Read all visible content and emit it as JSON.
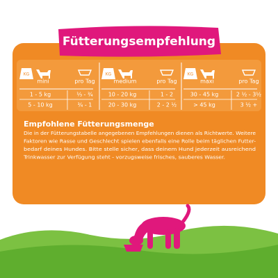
{
  "header": {
    "title": "Fütterungsempfehlung"
  },
  "table": {
    "groups": [
      {
        "kg_icon": "KG",
        "size": "mini",
        "per_day": "pro Tag",
        "rows": [
          [
            "1 - 5 kg",
            "⅓ - ¾"
          ],
          [
            "5 - 10 kg",
            "¾ - 1"
          ]
        ]
      },
      {
        "kg_icon": "KG",
        "size": "medium",
        "per_day": "pro Tag",
        "rows": [
          [
            "10 - 20 kg",
            "1 - 2"
          ],
          [
            "20 - 30 kg",
            "2 - 2 ½"
          ]
        ]
      },
      {
        "kg_icon": "KG",
        "size": "maxi",
        "per_day": "pro Tag",
        "rows": [
          [
            "30 - 45 kg",
            "2 ½ - 3½"
          ],
          [
            "> 45 kg",
            "3 ½ +"
          ]
        ]
      }
    ]
  },
  "section": {
    "heading": "Empfohlene Fütterungsmenge",
    "lines": [
      "Die in der Fütterungstabelle angegebenen Empfehlungen dienen als Richtwerte. Weitere",
      "Faktoren wie Rasse und Geschlecht spielen ebenfalls eine Rolle beim täglichen Futter-",
      "bedarf deines Hundes. Bitte stelle sicher, dass deinem Hund jederzeit ausreichend",
      "Trinkwasser zur Verfügung steht - vorzugsweise frisches, sauberes Wasser."
    ]
  }
}
